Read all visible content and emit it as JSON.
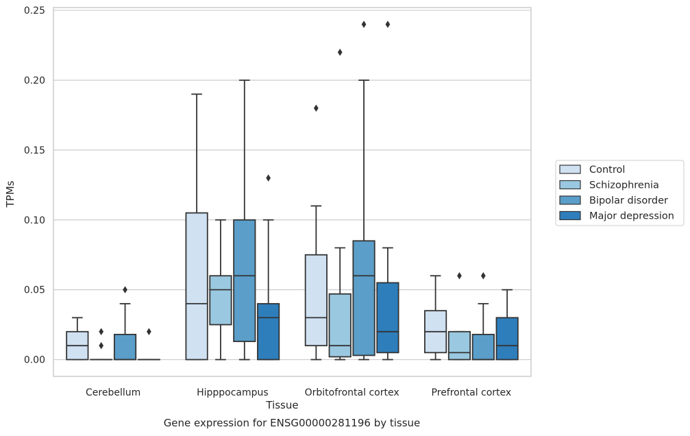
{
  "chart_data": {
    "type": "boxplot",
    "title": "Gene expression for ENSG00000281196 by tissue",
    "xlabel": "Tissue",
    "ylabel": "TPMs",
    "ylim": [
      -0.012,
      0.252
    ],
    "yticks": [
      "0.00",
      "0.05",
      "0.10",
      "0.15",
      "0.20",
      "0.25"
    ],
    "ytick_values": [
      0,
      0.05,
      0.1,
      0.15,
      0.2,
      0.25
    ],
    "grid": true,
    "legend_position": "right",
    "categories": [
      "Cerebellum",
      "Hipppocampus",
      "Orbitofrontal cortex",
      "Prefrontal cortex"
    ],
    "series": [
      {
        "name": "Control",
        "color": "#d0e1f2",
        "boxes": [
          {
            "whislo": 0.0,
            "q1": 0.0,
            "med": 0.01,
            "q3": 0.02,
            "whishi": 0.03,
            "fliers": []
          },
          {
            "whislo": 0.0,
            "q1": 0.0,
            "med": 0.04,
            "q3": 0.105,
            "whishi": 0.19,
            "fliers": []
          },
          {
            "whislo": 0.0,
            "q1": 0.01,
            "med": 0.03,
            "q3": 0.075,
            "whishi": 0.11,
            "fliers": [
              0.18
            ]
          },
          {
            "whislo": 0.0,
            "q1": 0.005,
            "med": 0.02,
            "q3": 0.035,
            "whishi": 0.06,
            "fliers": []
          }
        ]
      },
      {
        "name": "Schizophrenia",
        "color": "#9ac8e0",
        "boxes": [
          {
            "whislo": 0.0,
            "q1": 0.0,
            "med": 0.0,
            "q3": 0.0,
            "whishi": 0.0,
            "fliers": [
              0.01,
              0.02
            ]
          },
          {
            "whislo": 0.0,
            "q1": 0.025,
            "med": 0.05,
            "q3": 0.06,
            "whishi": 0.1,
            "fliers": []
          },
          {
            "whislo": 0.0,
            "q1": 0.002,
            "med": 0.01,
            "q3": 0.047,
            "whishi": 0.08,
            "fliers": [
              0.22
            ]
          },
          {
            "whislo": 0.0,
            "q1": 0.0,
            "med": 0.005,
            "q3": 0.02,
            "whishi": 0.02,
            "fliers": [
              0.06
            ]
          }
        ]
      },
      {
        "name": "Bipolar disorder",
        "color": "#5a9ec9",
        "boxes": [
          {
            "whislo": 0.0,
            "q1": 0.0,
            "med": 0.0,
            "q3": 0.018,
            "whishi": 0.04,
            "fliers": [
              0.05
            ]
          },
          {
            "whislo": 0.0,
            "q1": 0.013,
            "med": 0.06,
            "q3": 0.1,
            "whishi": 0.2,
            "fliers": []
          },
          {
            "whislo": 0.0,
            "q1": 0.003,
            "med": 0.06,
            "q3": 0.085,
            "whishi": 0.2,
            "fliers": [
              0.24
            ]
          },
          {
            "whislo": 0.0,
            "q1": 0.0,
            "med": 0.0,
            "q3": 0.018,
            "whishi": 0.04,
            "fliers": [
              0.06
            ]
          }
        ]
      },
      {
        "name": "Major depression",
        "color": "#2e7ebc",
        "boxes": [
          {
            "whislo": 0.0,
            "q1": 0.0,
            "med": 0.0,
            "q3": 0.0,
            "whishi": 0.0,
            "fliers": [
              0.02
            ]
          },
          {
            "whislo": 0.0,
            "q1": 0.0,
            "med": 0.03,
            "q3": 0.04,
            "whishi": 0.1,
            "fliers": [
              0.13
            ]
          },
          {
            "whislo": 0.0,
            "q1": 0.005,
            "med": 0.02,
            "q3": 0.055,
            "whishi": 0.08,
            "fliers": [
              0.24
            ]
          },
          {
            "whislo": 0.0,
            "q1": 0.0,
            "med": 0.01,
            "q3": 0.03,
            "whishi": 0.05,
            "fliers": []
          }
        ]
      }
    ]
  }
}
